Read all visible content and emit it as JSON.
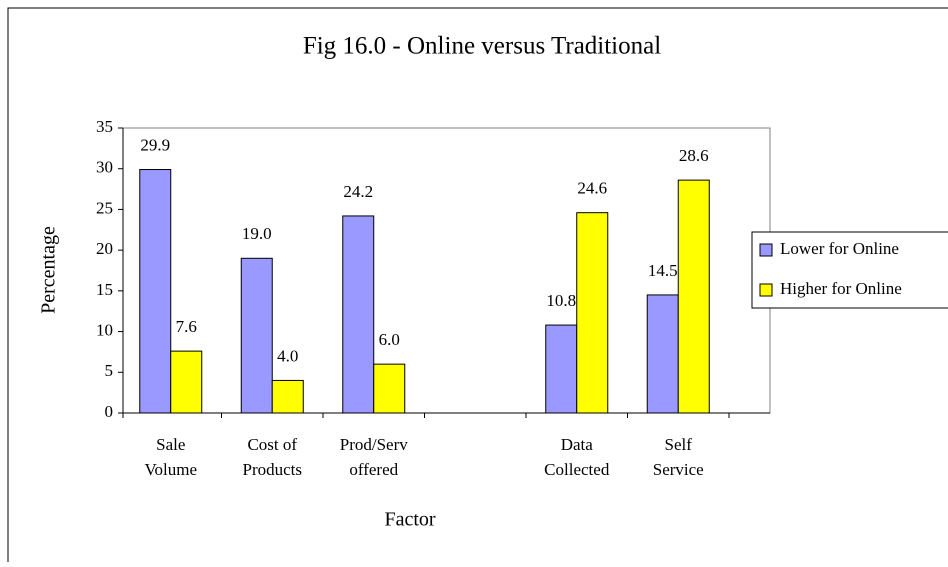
{
  "chart_data": {
    "type": "bar",
    "title": "Fig 16.0 - Online versus Traditional",
    "xlabel": "Factor",
    "ylabel": "Percentage",
    "categories": [
      [
        "Sale",
        "Volume"
      ],
      [
        "Cost of",
        "Products"
      ],
      [
        "Prod/Serv",
        "offered"
      ],
      null,
      [
        "Data",
        "Collected"
      ],
      [
        "Self",
        "Service"
      ]
    ],
    "series": [
      {
        "name": "Lower for Online",
        "color": "#9999ff",
        "values": [
          29.9,
          19.0,
          24.2,
          null,
          10.8,
          14.5
        ],
        "value_labels": [
          "29.9",
          "19.0",
          "24.2",
          null,
          "10.8",
          "14.5"
        ]
      },
      {
        "name": "Higher for Online",
        "color": "#ffff00",
        "values": [
          7.6,
          4.0,
          6.0,
          null,
          24.6,
          28.6
        ],
        "value_labels": [
          "7.6",
          "4.0",
          "6.0",
          null,
          "24.6",
          "28.6"
        ]
      }
    ],
    "ylim": [
      0,
      35
    ],
    "yticks": [
      0,
      5,
      10,
      15,
      20,
      25,
      30,
      35
    ],
    "legend": "right"
  }
}
